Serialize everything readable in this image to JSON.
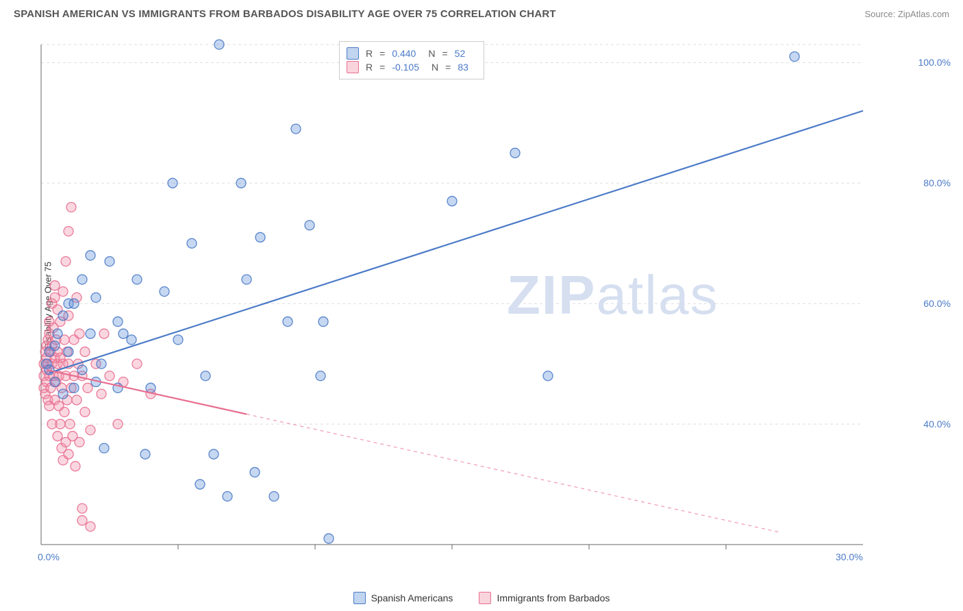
{
  "title": "SPANISH AMERICAN VS IMMIGRANTS FROM BARBADOS DISABILITY AGE OVER 75 CORRELATION CHART",
  "source": "Source: ZipAtlas.com",
  "watermark_zip": "ZIP",
  "watermark_atlas": "atlas",
  "ylabel": "Disability Age Over 75",
  "chart": {
    "type": "scatter",
    "background_color": "#ffffff",
    "grid_color": "#dddddd",
    "axis_color": "#666666",
    "tick_color": "#4a7ac7",
    "xlim": [
      0,
      30
    ],
    "ylim": [
      20,
      103
    ],
    "xticks": [
      0.0,
      30.0
    ],
    "xtick_labels": [
      "0.0%",
      "30.0%"
    ],
    "xtick_minor": [
      5,
      10,
      15,
      20,
      25
    ],
    "yticks": [
      40.0,
      60.0,
      80.0,
      100.0
    ],
    "ytick_labels": [
      "40.0%",
      "60.0%",
      "80.0%",
      "100.0%"
    ],
    "marker_radius": 7,
    "marker_fill_opacity": 0.35,
    "marker_stroke_opacity": 0.9,
    "marker_stroke_width": 1.3,
    "trend_line_width": 2.2,
    "series": [
      {
        "name": "Spanish Americans",
        "color": "#5b8dd6",
        "stroke": "#4a7ac7",
        "stats": {
          "R": "0.440",
          "N": "52"
        },
        "trend": {
          "x1": 0.3,
          "y1": 48.5,
          "x2": 30,
          "y2": 92,
          "solid_until_x": 30
        },
        "points": [
          [
            0.2,
            50
          ],
          [
            0.3,
            49
          ],
          [
            0.3,
            52
          ],
          [
            0.5,
            53
          ],
          [
            0.5,
            47
          ],
          [
            0.6,
            55
          ],
          [
            0.8,
            58
          ],
          [
            0.8,
            45
          ],
          [
            1.0,
            52
          ],
          [
            1.0,
            60
          ],
          [
            1.2,
            60
          ],
          [
            1.2,
            46
          ],
          [
            1.5,
            64
          ],
          [
            1.5,
            49
          ],
          [
            1.8,
            55
          ],
          [
            1.8,
            68
          ],
          [
            2.0,
            61
          ],
          [
            2.0,
            47
          ],
          [
            2.2,
            50
          ],
          [
            2.3,
            36
          ],
          [
            2.5,
            67
          ],
          [
            2.8,
            46
          ],
          [
            2.8,
            57
          ],
          [
            3.0,
            55
          ],
          [
            3.3,
            54
          ],
          [
            3.5,
            64
          ],
          [
            3.8,
            35
          ],
          [
            4.0,
            46
          ],
          [
            4.5,
            62
          ],
          [
            4.8,
            80
          ],
          [
            5.0,
            54
          ],
          [
            5.5,
            70
          ],
          [
            5.8,
            30
          ],
          [
            6.0,
            48
          ],
          [
            6.3,
            35
          ],
          [
            6.5,
            103
          ],
          [
            6.8,
            28
          ],
          [
            7.3,
            80
          ],
          [
            7.5,
            64
          ],
          [
            7.8,
            32
          ],
          [
            8.0,
            71
          ],
          [
            8.5,
            28
          ],
          [
            9.0,
            57
          ],
          [
            9.3,
            89
          ],
          [
            9.8,
            73
          ],
          [
            10.2,
            48
          ],
          [
            10.3,
            57
          ],
          [
            10.5,
            21
          ],
          [
            15.0,
            77
          ],
          [
            17.3,
            85
          ],
          [
            18.5,
            48
          ],
          [
            27.5,
            101
          ]
        ]
      },
      {
        "name": "Immigrants from Barbados",
        "color": "#f08ca5",
        "stroke": "#e86e8f",
        "stats": {
          "R": "-0.105",
          "N": "83"
        },
        "trend": {
          "x1": 0.2,
          "y1": 49,
          "x2": 27,
          "y2": 22,
          "solid_until_x": 7.5
        },
        "points": [
          [
            0.1,
            48
          ],
          [
            0.1,
            50
          ],
          [
            0.1,
            46
          ],
          [
            0.15,
            52
          ],
          [
            0.15,
            45
          ],
          [
            0.2,
            53
          ],
          [
            0.2,
            49
          ],
          [
            0.2,
            51
          ],
          [
            0.2,
            47
          ],
          [
            0.25,
            54
          ],
          [
            0.25,
            44
          ],
          [
            0.25,
            50
          ],
          [
            0.3,
            43
          ],
          [
            0.3,
            55
          ],
          [
            0.3,
            48
          ],
          [
            0.3,
            57
          ],
          [
            0.35,
            52
          ],
          [
            0.35,
            46
          ],
          [
            0.4,
            60
          ],
          [
            0.4,
            50
          ],
          [
            0.4,
            40
          ],
          [
            0.4,
            53
          ],
          [
            0.45,
            56
          ],
          [
            0.45,
            48
          ],
          [
            0.5,
            63
          ],
          [
            0.5,
            51
          ],
          [
            0.5,
            44
          ],
          [
            0.5,
            61
          ],
          [
            0.55,
            47
          ],
          [
            0.55,
            54
          ],
          [
            0.6,
            59
          ],
          [
            0.6,
            50
          ],
          [
            0.6,
            38
          ],
          [
            0.6,
            52
          ],
          [
            0.65,
            48
          ],
          [
            0.65,
            43
          ],
          [
            0.7,
            57
          ],
          [
            0.7,
            40
          ],
          [
            0.7,
            51
          ],
          [
            0.75,
            36
          ],
          [
            0.75,
            46
          ],
          [
            0.8,
            62
          ],
          [
            0.8,
            34
          ],
          [
            0.8,
            50
          ],
          [
            0.85,
            54
          ],
          [
            0.85,
            42
          ],
          [
            0.9,
            67
          ],
          [
            0.9,
            48
          ],
          [
            0.9,
            37
          ],
          [
            0.95,
            52
          ],
          [
            0.95,
            44
          ],
          [
            1.0,
            72
          ],
          [
            1.0,
            58
          ],
          [
            1.0,
            35
          ],
          [
            1.0,
            50
          ],
          [
            1.05,
            40
          ],
          [
            1.1,
            46
          ],
          [
            1.1,
            76
          ],
          [
            1.15,
            38
          ],
          [
            1.2,
            54
          ],
          [
            1.2,
            48
          ],
          [
            1.25,
            33
          ],
          [
            1.3,
            61
          ],
          [
            1.3,
            44
          ],
          [
            1.35,
            50
          ],
          [
            1.4,
            37
          ],
          [
            1.4,
            55
          ],
          [
            1.5,
            26
          ],
          [
            1.5,
            24
          ],
          [
            1.5,
            48
          ],
          [
            1.6,
            42
          ],
          [
            1.6,
            52
          ],
          [
            1.7,
            46
          ],
          [
            1.8,
            39
          ],
          [
            1.8,
            23
          ],
          [
            2.0,
            50
          ],
          [
            2.2,
            45
          ],
          [
            2.3,
            55
          ],
          [
            2.5,
            48
          ],
          [
            2.8,
            40
          ],
          [
            3.0,
            47
          ],
          [
            3.5,
            50
          ],
          [
            4.0,
            45
          ]
        ]
      }
    ]
  },
  "stats_box": {
    "R_label": "R",
    "N_label": "N",
    "eq": "="
  },
  "legend": {
    "series1": "Spanish Americans",
    "series2": "Immigrants from Barbados"
  }
}
